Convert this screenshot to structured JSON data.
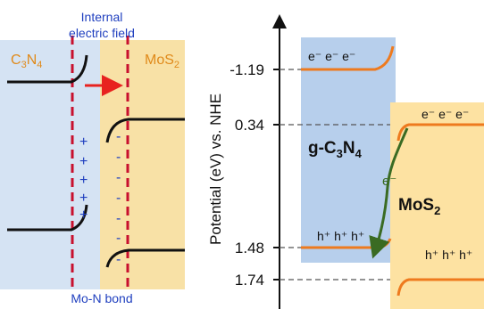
{
  "left_panel": {
    "title_line1": "Internal",
    "title_line2": "electric field",
    "label_left": "C",
    "label_left_sub1": "3",
    "label_left_mid": "N",
    "label_left_sub2": "4",
    "label_right": "MoS",
    "label_right_sub": "2",
    "bottom_label": "Mo-N bond",
    "plus_signs": [
      "+",
      "+",
      "+",
      "+",
      "+"
    ],
    "minus_signs": [
      "-",
      "-",
      "-",
      "-",
      "-",
      "-",
      "-"
    ],
    "colors": {
      "c3n4_bg": "#d5e3f3",
      "mos2_bg": "#f8e1a6",
      "interface_line": "#c8102e",
      "arrow": "#e8221f",
      "band": "#111111",
      "text_blue": "#1f3fbf",
      "text_orange": "#e08a1a"
    }
  },
  "right_panel": {
    "y_axis_label": "Potential (eV) vs. NHE",
    "ticks": [
      "-1.19",
      "0.34",
      "1.48",
      "1.74"
    ],
    "gc3n4_label_main": "g-C",
    "gc3n4_sub1": "3",
    "gc3n4_label_mid": "N",
    "gc3n4_sub2": "4",
    "mos2_label_main": "MoS",
    "mos2_sub": "2",
    "gc3n4_electrons": "e⁻ e⁻ e⁻",
    "mos2_electrons": "e⁻ e⁻ e⁻",
    "gc3n4_holes": "h⁺ h⁺ h⁺",
    "mos2_holes": "h⁺ h⁺ h⁺",
    "transfer_electron": "e⁻",
    "colors": {
      "gc3n4_box": "#b7cfec",
      "mos2_box": "#fde2a2",
      "band": "#ee7a1e",
      "transfer_arrow": "#3a6b23",
      "axis": "#111111",
      "dashed": "#555555"
    }
  }
}
